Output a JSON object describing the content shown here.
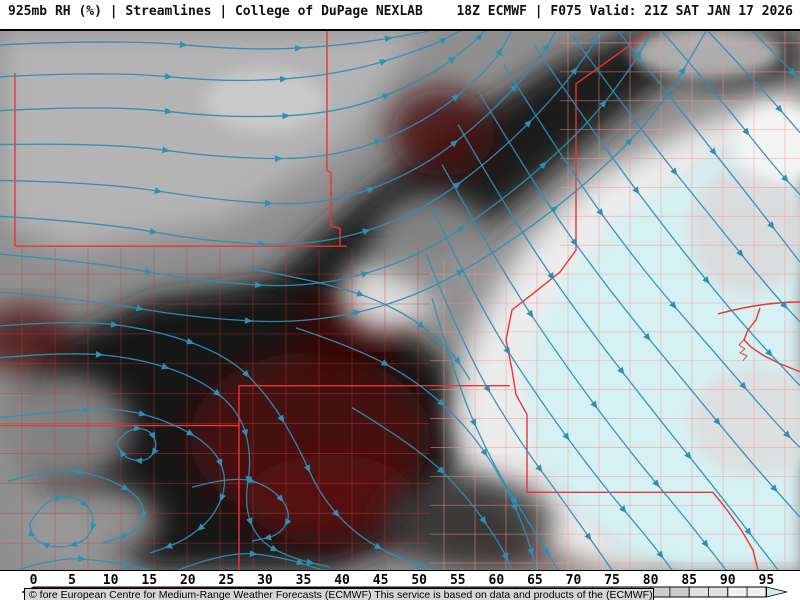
{
  "header": {
    "left_title": "925mb RH (%) | Streamlines | College of DuPage NEXLAB",
    "right_title": "18Z ECMWF | F075 Valid: 21Z SAT JAN 17 2026"
  },
  "map": {
    "attribution": "© fore European Centre for Medium-Range Weather Forecasts (ECMWF)  This service is based on data and products of the (ECMWF)"
  },
  "colorbar": {
    "labels": [
      "0",
      "5",
      "10",
      "15",
      "20",
      "25",
      "30",
      "35",
      "40",
      "45",
      "50",
      "55",
      "60",
      "65",
      "70",
      "75",
      "80",
      "85",
      "90",
      "95"
    ],
    "segment_colors": [
      "#7a1215",
      "#851619",
      "#8a181a",
      "#7e1517",
      "#6b1013",
      "#4c0a0c",
      "#2a0606",
      "#1c1c1c",
      "#2e2e2e",
      "#424242",
      "#555555",
      "#686868",
      "#7c7c7c",
      "#909090",
      "#a4a4a4",
      "#b8b8b8",
      "#cccccc",
      "#e0e0e0",
      "#f0f0f0",
      "#fafafa"
    ],
    "left_arrow_color": "#5c0d10",
    "right_arrow_color": "#c9ebed"
  },
  "colors": {
    "streamline": "#2d8fb4",
    "state_border": "#ee3333",
    "county_left": "#b84040",
    "county_right": "#f09898",
    "moist_fill": "#d6f1f3",
    "dry_fill": "#4d0a0a"
  }
}
